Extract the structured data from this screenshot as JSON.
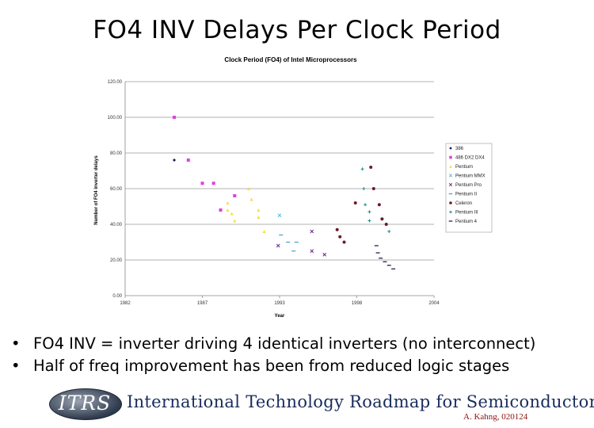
{
  "slide": {
    "title": "FO4 INV Delays Per Clock Period",
    "bullets": [
      "FO4 INV = inverter driving 4 identical inverters (no interconnect)",
      "Half of freq improvement has been from reduced logic stages"
    ],
    "banner": {
      "logo_text": "ITRS",
      "name": "International Technology Roadmap for Semiconductors"
    },
    "author": "A. Kahng, 020124"
  },
  "chart_data": {
    "type": "scatter",
    "title": "Clock Period (FO4) of Intel Microprocessors",
    "xlabel": "Year",
    "ylabel": "Number of FO4 inverter delays",
    "xlim": [
      1982,
      2004
    ],
    "ylim": [
      0,
      120
    ],
    "x_ticks": [
      "1982",
      "1987",
      "1993",
      "1998",
      "2004"
    ],
    "y_ticks": [
      "0.00",
      "20.00",
      "40.00",
      "60.00",
      "80.00",
      "100.00",
      "120.00"
    ],
    "grid": true,
    "legend_position": "right",
    "series": [
      {
        "name": "386",
        "color": "#1a1a5e",
        "marker": "diamond",
        "points": [
          [
            1985.5,
            76
          ]
        ]
      },
      {
        "name": "486 DX2 DX4",
        "color": "#e040e0",
        "marker": "square",
        "points": [
          [
            1985.5,
            100
          ],
          [
            1986.5,
            76
          ],
          [
            1987.5,
            63
          ],
          [
            1988.3,
            63
          ],
          [
            1988.8,
            48
          ],
          [
            1989.8,
            56
          ]
        ]
      },
      {
        "name": "Pentium",
        "color": "#f0e040",
        "marker": "triangle",
        "points": [
          [
            1989.8,
            42
          ],
          [
            1989.3,
            48
          ],
          [
            1989.6,
            46
          ],
          [
            1990.8,
            60
          ],
          [
            1991,
            54
          ],
          [
            1991.5,
            48
          ],
          [
            1991.5,
            44
          ],
          [
            1991.9,
            36
          ],
          [
            1989.3,
            52
          ]
        ]
      },
      {
        "name": "Pentium MMX",
        "color": "#5fb8d8",
        "marker": "x",
        "points": [
          [
            1993,
            45
          ]
        ]
      },
      {
        "name": "Pentium Pro",
        "color": "#6a2a8a",
        "marker": "x",
        "points": [
          [
            1992.9,
            28
          ],
          [
            1995.3,
            36
          ],
          [
            1995.3,
            25
          ],
          [
            1996.2,
            23
          ]
        ]
      },
      {
        "name": "Pentium II",
        "color": "#40a0c8",
        "marker": "dash",
        "points": [
          [
            1993.1,
            34
          ],
          [
            1993.6,
            30
          ],
          [
            1994.2,
            30
          ],
          [
            1994,
            25
          ]
        ]
      },
      {
        "name": "Celeron",
        "color": "#6b1a2a",
        "marker": "circle",
        "points": [
          [
            1997.1,
            37
          ],
          [
            1997.3,
            33
          ],
          [
            1997.6,
            30
          ],
          [
            1998.4,
            52
          ],
          [
            1999.5,
            72
          ],
          [
            1999.7,
            60
          ],
          [
            2000.1,
            51
          ],
          [
            2000.3,
            43
          ],
          [
            2000.6,
            40
          ]
        ]
      },
      {
        "name": "Pentium III",
        "color": "#1f8a8a",
        "marker": "plus",
        "points": [
          [
            1998.9,
            71
          ],
          [
            1999,
            60
          ],
          [
            1999.1,
            51
          ],
          [
            1999.4,
            47
          ],
          [
            1999.4,
            42
          ],
          [
            2000.8,
            36
          ]
        ]
      },
      {
        "name": "Pentium 4",
        "color": "#101040",
        "marker": "dash",
        "points": [
          [
            1999.9,
            28
          ],
          [
            2000,
            24
          ],
          [
            2000.2,
            21
          ],
          [
            2000.5,
            19
          ],
          [
            2000.8,
            17
          ],
          [
            2001.1,
            15
          ]
        ]
      }
    ]
  }
}
